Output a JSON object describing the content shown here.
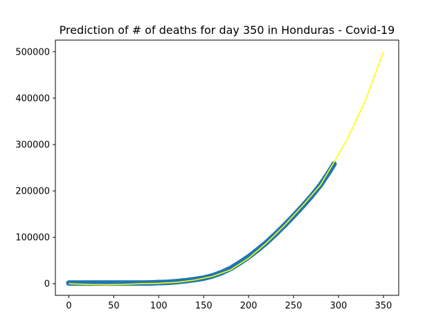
{
  "chart_data": {
    "type": "scatter",
    "title": "Prediction of # of deaths for day 350 in Honduras - Covid-19",
    "xlabel": "",
    "ylabel": "",
    "xlim": [
      -15,
      367
    ],
    "ylim": [
      -25000,
      525000
    ],
    "x_ticks": [
      0,
      50,
      100,
      150,
      200,
      250,
      300,
      350
    ],
    "y_ticks": [
      0,
      100000,
      200000,
      300000,
      400000,
      500000
    ],
    "grid": false,
    "legend": "none",
    "colors": {
      "scatter": "#1f77b4",
      "fit": "#ffff00"
    },
    "scatter": {
      "x": [
        0,
        10,
        20,
        30,
        40,
        50,
        60,
        70,
        80,
        90,
        100,
        110,
        120,
        130,
        140,
        150,
        160,
        170,
        180,
        190,
        200,
        210,
        220,
        230,
        240,
        250,
        260,
        270,
        280,
        290,
        295
      ],
      "y": [
        1500,
        1500,
        1500,
        1500,
        1500,
        1500,
        1500,
        1500,
        1500,
        1600,
        2500,
        3000,
        4500,
        6500,
        9000,
        12000,
        17000,
        24000,
        33000,
        45000,
        58000,
        73000,
        89000,
        107000,
        126000,
        146000,
        167000,
        189000,
        213000,
        242000,
        258000
      ]
    },
    "fit": {
      "x": [
        0,
        20,
        40,
        60,
        80,
        100,
        120,
        140,
        160,
        180,
        200,
        220,
        240,
        260,
        280,
        295,
        310,
        330,
        350
      ],
      "y": [
        0,
        -1500,
        -2000,
        -1500,
        0,
        1000,
        3000,
        8000,
        16000,
        30000,
        55000,
        88000,
        126000,
        168000,
        213000,
        262000,
        312000,
        395000,
        500000
      ]
    }
  }
}
